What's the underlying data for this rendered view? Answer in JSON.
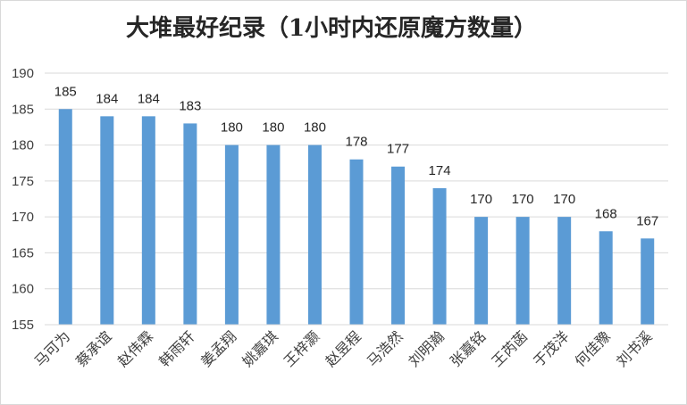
{
  "chart_data": {
    "type": "bar",
    "title": "大堆最好纪录（1小时内还原魔方数量）",
    "xlabel": "",
    "ylabel": "",
    "categories": [
      "马可为",
      "蔡承谊",
      "赵伟霖",
      "韩雨轩",
      "姜孟翔",
      "姚嘉琪",
      "王梓灏",
      "赵昱程",
      "马浩然",
      "刘明瀚",
      "张嘉铭",
      "王芮菡",
      "于茂洋",
      "何佳豫",
      "刘书溪"
    ],
    "values": [
      185,
      184,
      184,
      183,
      180,
      180,
      180,
      178,
      177,
      174,
      170,
      170,
      170,
      168,
      167
    ],
    "ylim": [
      155,
      190
    ],
    "yticks": [
      155,
      160,
      165,
      170,
      175,
      180,
      185,
      190
    ],
    "grid": true,
    "legend": "none",
    "data_labels": true,
    "bar_color": "#5b9bd5"
  }
}
